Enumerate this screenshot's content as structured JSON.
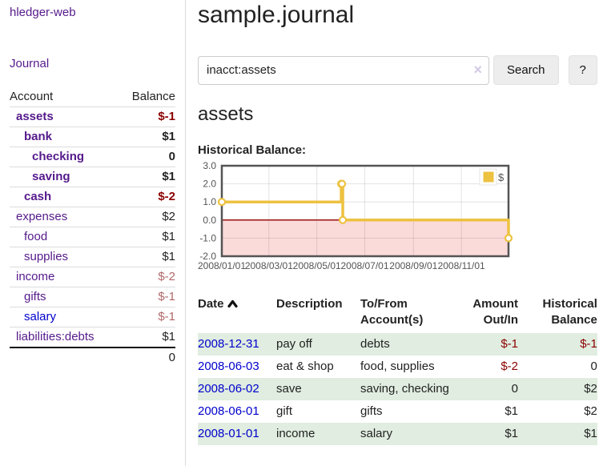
{
  "sidebar": {
    "app_title": "hledger-web",
    "journal_link": "Journal",
    "accounts_table": {
      "headers": {
        "account": "Account",
        "balance": "Balance"
      },
      "rows": [
        {
          "name": "assets",
          "balance": "$-1"
        },
        {
          "name": "bank",
          "balance": "$1"
        },
        {
          "name": "checking",
          "balance": "0"
        },
        {
          "name": "saving",
          "balance": "$1"
        },
        {
          "name": "cash",
          "balance": "$-2"
        },
        {
          "name": "expenses",
          "balance": "$2"
        },
        {
          "name": "food",
          "balance": "$1"
        },
        {
          "name": "supplies",
          "balance": "$1"
        },
        {
          "name": "income",
          "balance": "$-2"
        },
        {
          "name": "gifts",
          "balance": "$-1"
        },
        {
          "name": "salary",
          "balance": "$-1"
        },
        {
          "name": "liabilities:debts",
          "balance": "$1"
        }
      ],
      "total": "0"
    }
  },
  "header": {
    "title": "sample.journal"
  },
  "search": {
    "query": "inacct:assets",
    "clear_icon": "×",
    "search_label": "Search",
    "help_label": "?"
  },
  "account_page": {
    "heading": "assets",
    "chart_label": "Historical Balance:"
  },
  "chart_data": {
    "type": "line",
    "title": "Historical Balance",
    "series": [
      {
        "name": "$",
        "color": "#edc240",
        "step": true,
        "points": [
          {
            "date": "2008-01-01",
            "value": 1
          },
          {
            "date": "2008-06-01",
            "value": 2
          },
          {
            "date": "2008-06-02",
            "value": 2
          },
          {
            "date": "2008-06-03",
            "value": 0
          },
          {
            "date": "2008-12-31",
            "value": -1
          }
        ]
      }
    ],
    "x_ticks": [
      "2008/01/01",
      "2008/03/01",
      "2008/05/01",
      "2008/07/01",
      "2008/09/01",
      "2008/11/01"
    ],
    "y_ticks": [
      "3.0",
      "2.0",
      "1.0",
      "0.0",
      "-1.0",
      "-2.0"
    ],
    "xlim": [
      "2008-01-01",
      "2008-12-31"
    ],
    "ylim": [
      -2,
      3
    ],
    "negative_region_color": "#fbdada",
    "zero_line_color": "#991111",
    "grid": true,
    "legend": {
      "label": "$",
      "position": "top-right"
    }
  },
  "register": {
    "headers": {
      "date": "Date",
      "description": "Description",
      "accounts": "To/From Account(s)",
      "amount": "Amount Out/In",
      "balance": "Historical Balance"
    },
    "rows": [
      {
        "date": "2008-12-31",
        "description": "pay off",
        "accounts": "debts",
        "amount": "$-1",
        "balance": "$-1"
      },
      {
        "date": "2008-06-03",
        "description": "eat & shop",
        "accounts": "food, supplies",
        "amount": "$-2",
        "balance": "0"
      },
      {
        "date": "2008-06-02",
        "description": "save",
        "accounts": "saving, checking",
        "amount": "0",
        "balance": "$2"
      },
      {
        "date": "2008-06-01",
        "description": "gift",
        "accounts": "gifts",
        "amount": "$1",
        "balance": "$2"
      },
      {
        "date": "2008-01-01",
        "description": "income",
        "accounts": "salary",
        "amount": "$1",
        "balance": "$1"
      }
    ]
  }
}
